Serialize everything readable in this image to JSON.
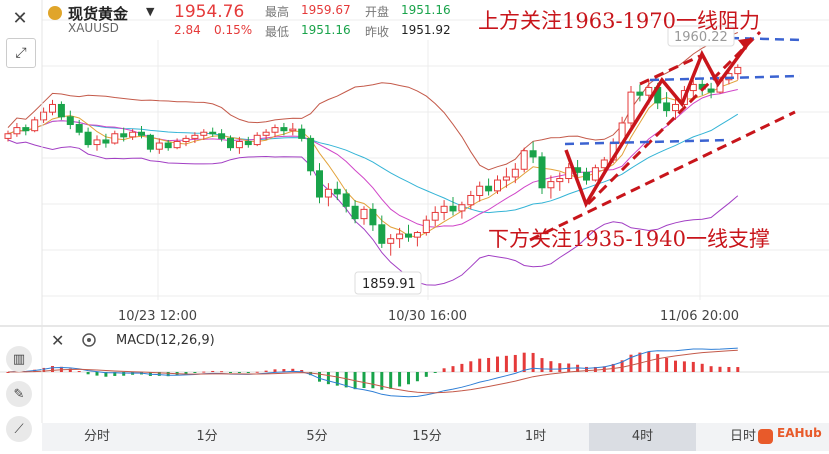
{
  "header": {
    "title": "现货黄金",
    "symbol": "XAUUSD",
    "price": "1954.76",
    "change": "2.84",
    "change_pct": "0.15%",
    "high_label": "最高",
    "high": "1959.67",
    "open_label": "开盘",
    "open": "1951.16",
    "low_label": "最低",
    "low": "1951.16",
    "prev_label": "昨收",
    "prev": "1951.92"
  },
  "annotations": {
    "upper": "上方关注1963-1970一线阻力",
    "lower": "下方关注1935-1940一线支撑",
    "high_marker": "1960.22",
    "low_marker": "1859.91"
  },
  "macd": {
    "label": "MACD(12,26,9)"
  },
  "timeframes": [
    "分时",
    "1分",
    "5分",
    "15分",
    "1时",
    "4时",
    "日时"
  ],
  "active_timeframe": "4时",
  "logo": "EAHub",
  "colors": {
    "up": "#e53a3a",
    "down": "#19a34a",
    "annotation": "#c8151b"
  },
  "chart_data": {
    "type": "candlestick",
    "x_tick_labels": [
      "10/23 12:00",
      "10/30 16:00",
      "11/06 20:00"
    ],
    "candles": [
      [
        1974,
        1979,
        1972,
        1977
      ],
      [
        1977,
        1984,
        1975,
        1981
      ],
      [
        1981,
        1983,
        1976,
        1979
      ],
      [
        1979,
        1988,
        1978,
        1986
      ],
      [
        1986,
        1994,
        1984,
        1991
      ],
      [
        1991,
        1999,
        1989,
        1996
      ],
      [
        1996,
        1998,
        1986,
        1988
      ],
      [
        1988,
        1992,
        1980,
        1983
      ],
      [
        1983,
        1986,
        1976,
        1978
      ],
      [
        1978,
        1981,
        1968,
        1970
      ],
      [
        1970,
        1976,
        1966,
        1973
      ],
      [
        1973,
        1977,
        1968,
        1971
      ],
      [
        1971,
        1979,
        1970,
        1977
      ],
      [
        1977,
        1981,
        1972,
        1975
      ],
      [
        1975,
        1980,
        1973,
        1978
      ],
      [
        1978,
        1982,
        1974,
        1976
      ],
      [
        1976,
        1977,
        1965,
        1967
      ],
      [
        1967,
        1974,
        1964,
        1971
      ],
      [
        1971,
        1973,
        1966,
        1968
      ],
      [
        1968,
        1974,
        1967,
        1972
      ],
      [
        1972,
        1976,
        1969,
        1974
      ],
      [
        1974,
        1978,
        1971,
        1976
      ],
      [
        1976,
        1980,
        1973,
        1978
      ],
      [
        1978,
        1981,
        1975,
        1977
      ],
      [
        1977,
        1980,
        1972,
        1974
      ],
      [
        1974,
        1976,
        1966,
        1968
      ],
      [
        1968,
        1975,
        1964,
        1972
      ],
      [
        1972,
        1975,
        1968,
        1970
      ],
      [
        1970,
        1978,
        1969,
        1976
      ],
      [
        1976,
        1980,
        1973,
        1978
      ],
      [
        1978,
        1983,
        1975,
        1981
      ],
      [
        1981,
        1984,
        1976,
        1979
      ],
      [
        1979,
        1984,
        1976,
        1980
      ],
      [
        1980,
        1983,
        1972,
        1974
      ],
      [
        1974,
        1976,
        1950,
        1953
      ],
      [
        1953,
        1958,
        1932,
        1936
      ],
      [
        1936,
        1945,
        1930,
        1941
      ],
      [
        1941,
        1946,
        1934,
        1938
      ],
      [
        1938,
        1941,
        1926,
        1930
      ],
      [
        1930,
        1934,
        1919,
        1922
      ],
      [
        1922,
        1930,
        1918,
        1928
      ],
      [
        1928,
        1932,
        1914,
        1918
      ],
      [
        1918,
        1924,
        1903,
        1906
      ],
      [
        1906,
        1912,
        1898,
        1909
      ],
      [
        1909,
        1916,
        1903,
        1912
      ],
      [
        1912,
        1918,
        1907,
        1910
      ],
      [
        1910,
        1914,
        1904,
        1913
      ],
      [
        1913,
        1924,
        1911,
        1921
      ],
      [
        1921,
        1930,
        1917,
        1926
      ],
      [
        1926,
        1934,
        1921,
        1930
      ],
      [
        1930,
        1936,
        1924,
        1927
      ],
      [
        1927,
        1933,
        1922,
        1931
      ],
      [
        1931,
        1940,
        1928,
        1937
      ],
      [
        1937,
        1946,
        1933,
        1943
      ],
      [
        1943,
        1948,
        1937,
        1940
      ],
      [
        1940,
        1950,
        1938,
        1947
      ],
      [
        1947,
        1955,
        1942,
        1949
      ],
      [
        1949,
        1958,
        1945,
        1954
      ],
      [
        1954,
        1968,
        1952,
        1966
      ],
      [
        1966,
        1972,
        1958,
        1962
      ],
      [
        1962,
        1965,
        1938,
        1942
      ],
      [
        1942,
        1950,
        1935,
        1946
      ],
      [
        1946,
        1952,
        1940,
        1948
      ],
      [
        1948,
        1958,
        1945,
        1955
      ],
      [
        1955,
        1960,
        1948,
        1952
      ],
      [
        1952,
        1955,
        1944,
        1947
      ],
      [
        1947,
        1957,
        1946,
        1955
      ],
      [
        1955,
        1962,
        1952,
        1960
      ],
      [
        1960,
        1974,
        1958,
        1971
      ],
      [
        1971,
        1988,
        1969,
        1984
      ],
      [
        1984,
        2008,
        1980,
        2004
      ],
      [
        2004,
        2009,
        1998,
        2002
      ],
      [
        2002,
        2012,
        1996,
        2007
      ],
      [
        2007,
        2010,
        1993,
        1997
      ],
      [
        1997,
        2004,
        1988,
        1992
      ],
      [
        1992,
        2000,
        1986,
        1996
      ],
      [
        1996,
        2008,
        1994,
        2005
      ],
      [
        2005,
        2012,
        2001,
        2009
      ],
      [
        2009,
        2013,
        2002,
        2006
      ],
      [
        2006,
        2010,
        2000,
        2004
      ],
      [
        2004,
        2014,
        2003,
        2012
      ],
      [
        2012,
        2018,
        2009,
        2016
      ],
      [
        2016,
        2022,
        2012,
        2020
      ]
    ]
  }
}
